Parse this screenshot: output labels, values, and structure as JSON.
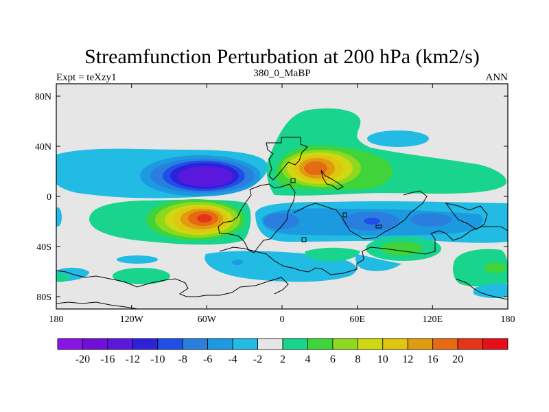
{
  "title": "Streamfunction Perturbation at 200 hPa (km2/s)",
  "left_label": "Expt = teXzy1",
  "center_label": "380_0_MaBP",
  "right_label": "ANN",
  "lat_ticks": [
    "80N",
    "40N",
    "0",
    "40S",
    "80S"
  ],
  "lon_ticks": [
    "180",
    "120W",
    "60W",
    "0",
    "60E",
    "120E",
    "180"
  ],
  "colorbar": {
    "colors": [
      "#8a14e6",
      "#6f0fd9",
      "#5a18dd",
      "#2d22d9",
      "#1f4fe8",
      "#2a7fde",
      "#1c9ae0",
      "#22bbe3",
      "#e6e6e6",
      "#19d48c",
      "#3ed43a",
      "#8ed91f",
      "#cfd812",
      "#e0c60e",
      "#e09c10",
      "#e66a12",
      "#e63418",
      "#e60f19"
    ],
    "labels": [
      "-20",
      "-16",
      "-12",
      "-10",
      "-8",
      "-6",
      "-4",
      "-2",
      "2",
      "4",
      "6",
      "8",
      "10",
      "12",
      "16",
      "20"
    ]
  },
  "colors": {
    "background": "#e6e6e6",
    "neg1": "#22bbe3",
    "neg2": "#1c9ae0",
    "neg3": "#2a7fde",
    "neg4": "#1f4fe8",
    "neg5": "#2d22d9",
    "neg6": "#5a18dd",
    "pos1": "#19d48c",
    "pos2": "#3ed43a",
    "pos3": "#8ed91f",
    "pos4": "#cfd812",
    "pos5": "#e0c60e",
    "pos6": "#e09c10",
    "pos7": "#e66a12",
    "pos8": "#e63418"
  }
}
